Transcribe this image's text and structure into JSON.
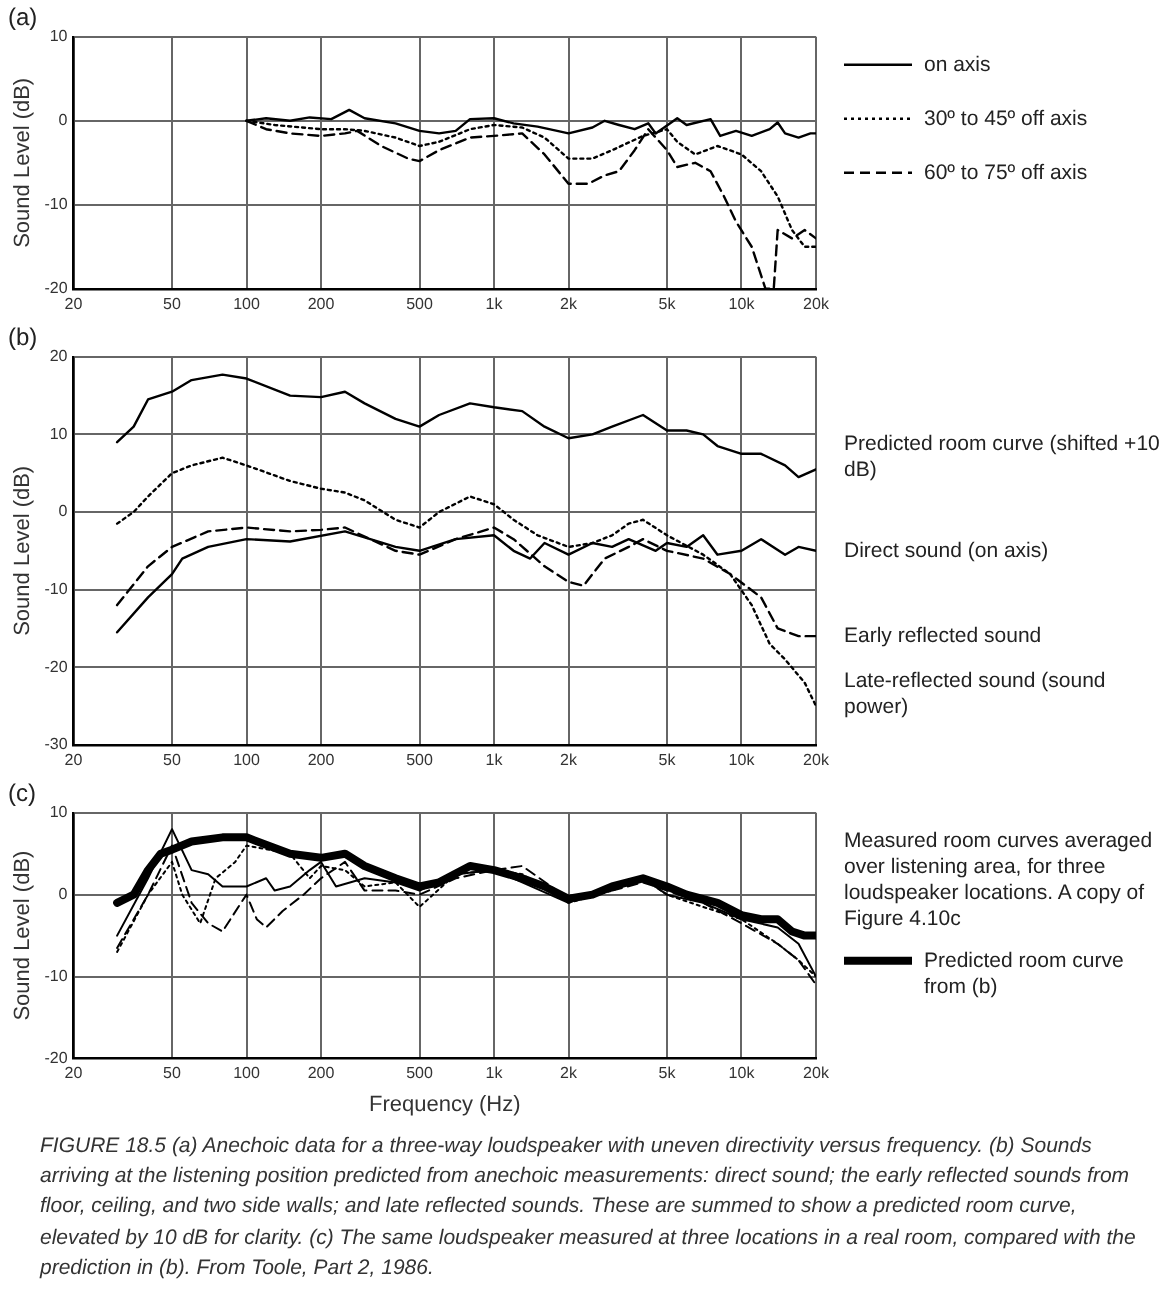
{
  "chart_data": [
    {
      "type": "line",
      "title": "(a)",
      "ylabel": "Sound Level (dB)",
      "log": "x",
      "grid": true,
      "legend": "right",
      "xlim": [
        20,
        20000
      ],
      "xticks": [
        20,
        50,
        100,
        200,
        500,
        {
          "value": 1000,
          "label": "1k"
        },
        {
          "value": 2000,
          "label": "2k"
        },
        {
          "value": 5000,
          "label": "5k"
        },
        {
          "value": 10000,
          "label": "10k"
        },
        {
          "value": 20000,
          "label": "20k"
        }
      ],
      "ylim": [
        -20,
        10
      ],
      "yticks": [
        -20,
        -10,
        0,
        10
      ],
      "series": [
        {
          "name": "on axis",
          "color": "#000000",
          "line_style": "solid",
          "x": [
            100,
            120,
            150,
            180,
            220,
            260,
            300,
            400,
            500,
            600,
            700,
            800,
            1000,
            1200,
            1500,
            1800,
            2000,
            2500,
            2800,
            3200,
            3700,
            4200,
            4500,
            5500,
            6000,
            7500,
            8200,
            9500,
            11000,
            13000,
            14000,
            15000,
            17000,
            19000,
            20000
          ],
          "values": [
            0,
            0.3,
            0,
            0.4,
            0.2,
            1.3,
            0.3,
            -0.3,
            -1.2,
            -1.5,
            -1.2,
            0.2,
            0.3,
            -0.3,
            -0.7,
            -1.2,
            -1.5,
            -0.8,
            0,
            -0.5,
            -1,
            -0.3,
            -1.5,
            0.3,
            -0.5,
            0.2,
            -1.8,
            -1.2,
            -1.8,
            -1,
            -0.2,
            -1.5,
            -2,
            -1.5,
            -1.5
          ]
        },
        {
          "name": "30º to 45º off axis",
          "color": "#000000",
          "line_style": "dotted",
          "x": [
            100,
            130,
            200,
            250,
            300,
            400,
            500,
            600,
            800,
            1000,
            1300,
            1600,
            2000,
            2500,
            3000,
            4000,
            5000,
            5500,
            6500,
            8000,
            10000,
            12000,
            14000,
            16000,
            18000,
            20000
          ],
          "values": [
            0,
            -0.5,
            -1,
            -1,
            -1.2,
            -2,
            -3,
            -2.5,
            -1,
            -0.5,
            -0.8,
            -2,
            -4.5,
            -4.5,
            -3.5,
            -1.8,
            -1,
            -2.5,
            -4,
            -3,
            -4,
            -6,
            -9,
            -13,
            -15,
            -15
          ]
        },
        {
          "name": "60º to 75º off axis",
          "color": "#000000",
          "line_style": "dashed",
          "x": [
            100,
            120,
            150,
            200,
            250,
            280,
            350,
            450,
            500,
            600,
            800,
            1000,
            1300,
            1600,
            2000,
            2400,
            2800,
            3200,
            3700,
            4200,
            5000,
            5500,
            6500,
            7500,
            8500,
            9500,
            11000,
            12500,
            13500,
            14000,
            16000,
            18000,
            20000
          ],
          "values": [
            0,
            -1,
            -1.5,
            -1.8,
            -1.5,
            -1.2,
            -3,
            -4.5,
            -4.8,
            -3.5,
            -2,
            -1.8,
            -1.5,
            -4,
            -7.5,
            -7.5,
            -6.5,
            -6,
            -3.5,
            -1,
            -3.5,
            -5.5,
            -5,
            -6,
            -9,
            -12,
            -15,
            -20,
            -20,
            -13,
            -14,
            -13,
            -14
          ]
        }
      ]
    },
    {
      "type": "line",
      "title": "(b)",
      "ylabel": "Sound Level (dB)",
      "log": "x",
      "grid": true,
      "xlim": [
        20,
        20000
      ],
      "xticks": [
        20,
        50,
        100,
        200,
        500,
        {
          "value": 1000,
          "label": "1k"
        },
        {
          "value": 2000,
          "label": "2k"
        },
        {
          "value": 5000,
          "label": "5k"
        },
        {
          "value": 10000,
          "label": "10k"
        },
        {
          "value": 20000,
          "label": "20k"
        }
      ],
      "ylim": [
        -30,
        20
      ],
      "yticks": [
        -30,
        -20,
        -10,
        0,
        10,
        20
      ],
      "series": [
        {
          "name": "Predicted room curve (shifted +10 dB)",
          "color": "#000000",
          "line_style": "solid",
          "x": [
            30,
            35,
            40,
            50,
            60,
            80,
            100,
            150,
            200,
            250,
            300,
            400,
            500,
            600,
            800,
            1000,
            1300,
            1600,
            2000,
            2500,
            3000,
            4000,
            5000,
            6000,
            7000,
            8000,
            10000,
            12000,
            15000,
            17000,
            20000
          ],
          "values": [
            9,
            11,
            14.5,
            15.5,
            17,
            17.7,
            17.2,
            15,
            14.8,
            15.5,
            14,
            12,
            11,
            12.5,
            14,
            13.5,
            13,
            11,
            9.5,
            10,
            11,
            12.5,
            10.5,
            10.5,
            10,
            8.5,
            7.5,
            7.5,
            6,
            4.5,
            5.5
          ]
        },
        {
          "name": "Direct sound (on axis)",
          "color": "#000000",
          "line_style": "solid",
          "x": [
            30,
            40,
            50,
            55,
            70,
            100,
            150,
            250,
            400,
            500,
            700,
            1000,
            1200,
            1400,
            1600,
            2000,
            2500,
            3000,
            3500,
            4500,
            5000,
            6000,
            7000,
            8000,
            10000,
            12000,
            15000,
            17000,
            20000
          ],
          "values": [
            -15.5,
            -11,
            -8,
            -6,
            -4.5,
            -3.5,
            -3.8,
            -2.5,
            -4.5,
            -5,
            -3.5,
            -3,
            -5,
            -6,
            -4,
            -5.5,
            -4,
            -4.5,
            -3.5,
            -5,
            -4,
            -4.5,
            -3,
            -5.5,
            -5,
            -3.5,
            -5.5,
            -4.5,
            -5
          ]
        },
        {
          "name": "Early reflected sound",
          "color": "#000000",
          "line_style": "dashed",
          "x": [
            30,
            40,
            50,
            70,
            100,
            150,
            200,
            250,
            400,
            500,
            700,
            1000,
            1200,
            1600,
            2000,
            2300,
            2800,
            3500,
            4000,
            5000,
            7000,
            9000,
            12000,
            14000,
            17000,
            20000
          ],
          "values": [
            -12,
            -7,
            -4.5,
            -2.5,
            -2,
            -2.5,
            -2.3,
            -2,
            -5,
            -5.5,
            -3.5,
            -2,
            -3.5,
            -7,
            -9,
            -9.5,
            -6,
            -4.5,
            -3.5,
            -5,
            -6,
            -8,
            -11,
            -15,
            -16,
            -16
          ]
        },
        {
          "name": "Late-reflected sound (sound power)",
          "color": "#000000",
          "line_style": "dotted",
          "x": [
            30,
            35,
            40,
            50,
            60,
            80,
            100,
            150,
            200,
            250,
            300,
            400,
            500,
            600,
            800,
            1000,
            1200,
            1500,
            2000,
            2500,
            3000,
            3500,
            4000,
            5000,
            7000,
            9000,
            11000,
            13000,
            15000,
            18000,
            20000
          ],
          "values": [
            -1.5,
            0,
            2,
            5,
            6,
            7,
            6,
            4,
            3,
            2.5,
            1.5,
            -1,
            -2,
            0,
            2,
            1,
            -1,
            -3,
            -4.5,
            -4,
            -3,
            -1.5,
            -1,
            -3,
            -5.5,
            -8,
            -12,
            -17,
            -19,
            -22,
            -25
          ]
        }
      ]
    },
    {
      "type": "line",
      "title": "(c)",
      "xlabel": "Frequency (Hz)",
      "ylabel": "Sound Level (dB)",
      "log": "x",
      "grid": true,
      "legend": "right",
      "xlim": [
        20,
        20000
      ],
      "xticks": [
        20,
        50,
        100,
        200,
        500,
        {
          "value": 1000,
          "label": "1k"
        },
        {
          "value": 2000,
          "label": "2k"
        },
        {
          "value": 5000,
          "label": "5k"
        },
        {
          "value": 10000,
          "label": "10k"
        },
        {
          "value": 20000,
          "label": "20k"
        }
      ],
      "ylim": [
        -20,
        10
      ],
      "yticks": [
        -20,
        -10,
        0,
        10
      ],
      "annotations": [
        "Measured room curves averaged over listening area, for three loudspeaker locations. A copy of Figure 4.10c",
        "FIGURE 18.5 (a) Anechoic data for a three-way loudspeaker with uneven directivity versus frequency. (b) Sounds arriving at the listening position predicted from anechoic measurements: direct sound; the early reflected sounds from floor, ceiling, and two side walls; and late reflected sounds. These are summed to show a predicted room curve, elevated by 10 dB for clarity. (c) The same loudspeaker measured at three locations in a real room, compared with the prediction in (b). From Toole, Part 2, 1986."
      ],
      "series": [
        {
          "color": "#000000",
          "line_style": "solid",
          "x": [
            30,
            40,
            50,
            60,
            70,
            80,
            100,
            120,
            130,
            150,
            180,
            200,
            230,
            300,
            400,
            500,
            700,
            1000,
            1300,
            2000,
            3000,
            4000,
            5000,
            7000,
            10000,
            14000,
            17000,
            20000
          ],
          "values": [
            -5,
            2,
            8,
            3,
            2.5,
            1,
            1,
            2,
            0.5,
            1,
            3,
            4,
            1,
            2,
            1.5,
            0.5,
            2.5,
            3,
            1.5,
            -1,
            1,
            2,
            0,
            -1,
            -3,
            -4,
            -6,
            -10
          ]
        },
        {
          "color": "#000000",
          "line_style": "dotted",
          "x": [
            30,
            40,
            50,
            55,
            65,
            75,
            90,
            100,
            150,
            180,
            200,
            250,
            300,
            400,
            500,
            700,
            1000,
            1300,
            2000,
            3000,
            4000,
            5000,
            7000,
            10000,
            14000,
            17000,
            20000
          ],
          "values": [
            -7,
            0,
            4,
            0,
            -3.5,
            2,
            4,
            6,
            5,
            2,
            3.5,
            3,
            1,
            1.5,
            -1.5,
            2.5,
            3,
            2.5,
            -1,
            0.5,
            2,
            0,
            -1.5,
            -3,
            -6,
            -8,
            -10
          ]
        },
        {
          "color": "#000000",
          "line_style": "dashed",
          "x": [
            30,
            40,
            50,
            60,
            70,
            80,
            95,
            100,
            110,
            120,
            140,
            170,
            200,
            250,
            300,
            400,
            500,
            700,
            1000,
            1300,
            2000,
            3000,
            4000,
            5000,
            7000,
            10000,
            14000,
            17000,
            20000
          ],
          "values": [
            -6.5,
            0,
            6,
            -1,
            -3.5,
            -4.5,
            -1,
            0,
            -3,
            -4,
            -2,
            0,
            2,
            4,
            0.5,
            0.5,
            0,
            2,
            3,
            3.5,
            -0.5,
            0.5,
            1.5,
            0.5,
            -1,
            -3.5,
            -6,
            -8,
            -11
          ]
        },
        {
          "name": "Predicted room curve from (b)",
          "color": "#000000",
          "line_style": "solid",
          "x": [
            30,
            35,
            40,
            45,
            50,
            60,
            80,
            100,
            150,
            200,
            250,
            300,
            400,
            500,
            600,
            800,
            1000,
            1300,
            1600,
            2000,
            2500,
            3000,
            4000,
            5000,
            6000,
            8000,
            10000,
            12000,
            14000,
            16000,
            18000,
            20000
          ],
          "values": [
            -1,
            0,
            3,
            5,
            5.5,
            6.5,
            7,
            7,
            5,
            4.5,
            5,
            3.5,
            2,
            1,
            1.5,
            3.5,
            3,
            2,
            1,
            -0.5,
            0,
            1,
            2,
            1,
            0,
            -1,
            -2.5,
            -3,
            -3,
            -4.5,
            -5,
            -5
          ]
        }
      ]
    }
  ]
}
